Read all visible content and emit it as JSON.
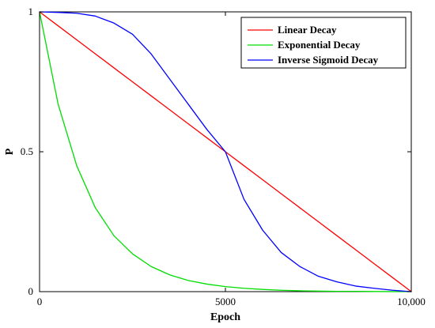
{
  "chart_data": {
    "type": "line",
    "title": "",
    "xlabel": "Epoch",
    "ylabel": "P",
    "xlim": [
      0,
      10000
    ],
    "ylim": [
      0,
      1
    ],
    "xticks": [
      0,
      5000,
      10000
    ],
    "xtick_labels": [
      "0",
      "5000",
      "10,000"
    ],
    "yticks": [
      0,
      0.5,
      1
    ],
    "ytick_labels": [
      "0",
      "0.5",
      "1"
    ],
    "grid": false,
    "legend_position": "top-right",
    "x": [
      0,
      500,
      1000,
      1500,
      2000,
      2500,
      3000,
      3500,
      4000,
      4500,
      5000,
      5500,
      6000,
      6500,
      7000,
      7500,
      8000,
      8500,
      9000,
      9500,
      10000
    ],
    "series": [
      {
        "name": "Linear Decay",
        "color": "#ff0000",
        "values": [
          1,
          0.95,
          0.9,
          0.85,
          0.8,
          0.75,
          0.7,
          0.65,
          0.6,
          0.55,
          0.5,
          0.45,
          0.4,
          0.35,
          0.3,
          0.25,
          0.2,
          0.15,
          0.1,
          0.05,
          0
        ]
      },
      {
        "name": "Exponential Decay",
        "color": "#00dd00",
        "values": [
          1,
          0.67,
          0.45,
          0.3,
          0.2,
          0.135,
          0.09,
          0.06,
          0.04,
          0.027,
          0.018,
          0.012,
          0.008,
          0.005,
          0.003,
          0.002,
          0.001,
          0.001,
          0.0005,
          0.0002,
          0
        ]
      },
      {
        "name": "Inverse Sigmoid Decay",
        "color": "#0000ff",
        "values": [
          1,
          0.998,
          0.995,
          0.985,
          0.96,
          0.92,
          0.85,
          0.76,
          0.67,
          0.58,
          0.5,
          0.33,
          0.22,
          0.14,
          0.09,
          0.055,
          0.035,
          0.02,
          0.012,
          0.005,
          0
        ]
      }
    ]
  }
}
